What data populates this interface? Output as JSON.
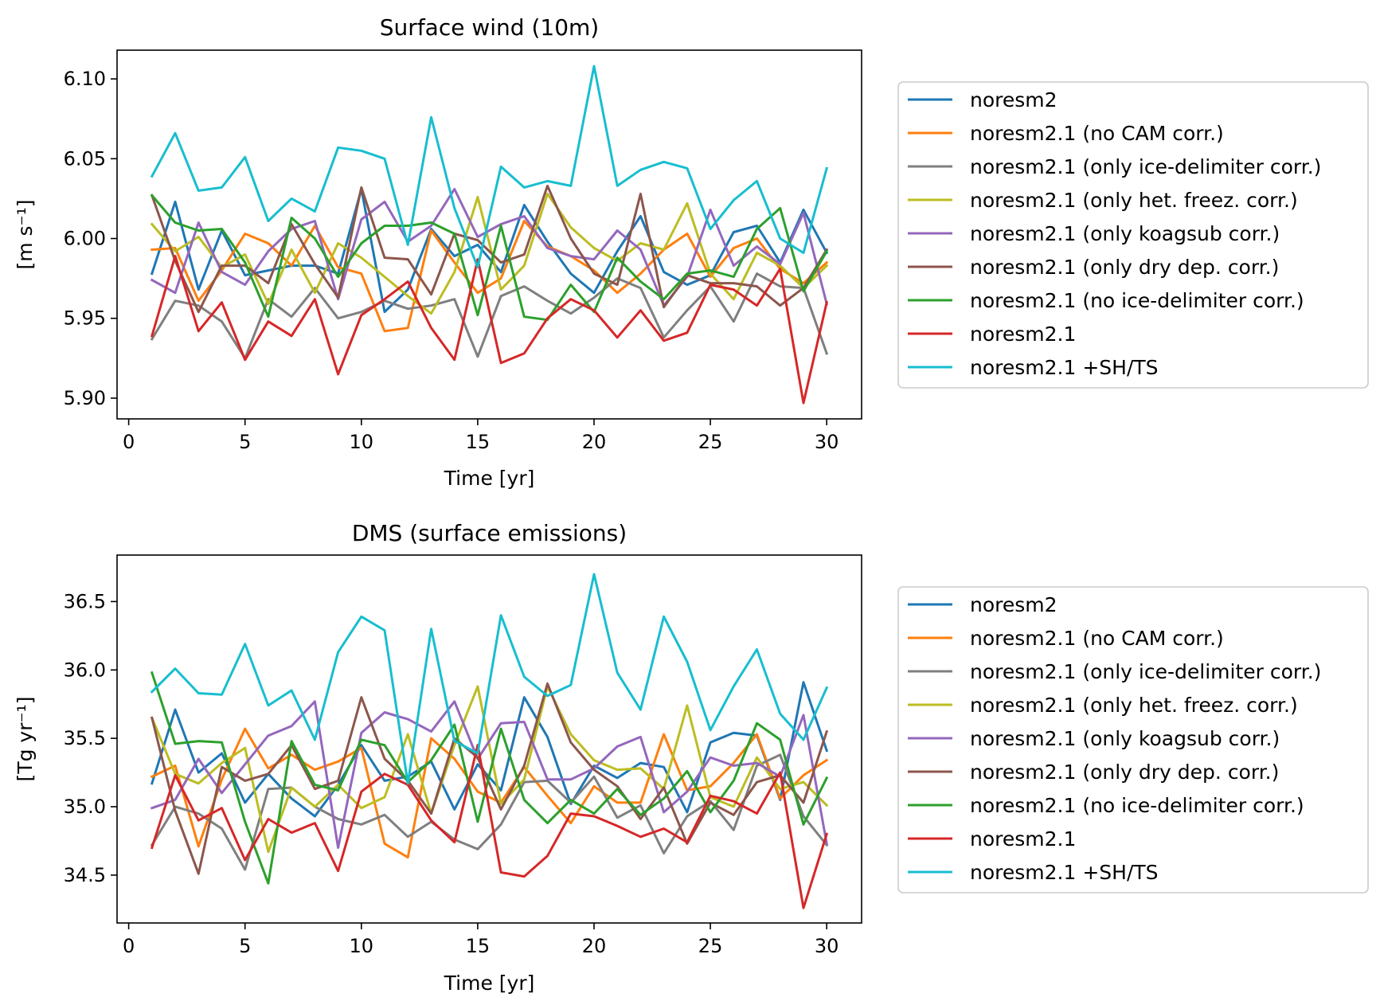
{
  "chart_data": [
    {
      "type": "line",
      "title": "Surface wind (10m)",
      "xlabel": "Time [yr]",
      "ylabel": "[m s⁻¹]",
      "xlim": [
        -0.5,
        31.5
      ],
      "ylim": [
        5.887,
        6.118
      ],
      "xticks": [
        0,
        5,
        10,
        15,
        20,
        25,
        30
      ],
      "yticks": [
        5.9,
        5.95,
        6.0,
        6.05,
        6.1
      ],
      "ytick_labels": [
        "5.90",
        "5.95",
        "6.00",
        "6.05",
        "6.10"
      ],
      "legend_position": "right, outside",
      "grid": false,
      "x": [
        1,
        2,
        3,
        4,
        5,
        6,
        7,
        8,
        9,
        10,
        11,
        12,
        13,
        14,
        15,
        16,
        17,
        18,
        19,
        20,
        21,
        22,
        23,
        24,
        25,
        26,
        27,
        28,
        29,
        30
      ],
      "series": [
        {
          "name": "noresm2",
          "color": "#1f77b4",
          "values": [
            5.978,
            6.023,
            5.968,
            6.005,
            5.977,
            5.98,
            5.983,
            5.983,
            5.978,
            6.031,
            5.954,
            5.968,
            6.006,
            5.989,
            5.996,
            5.979,
            6.021,
            5.998,
            5.978,
            5.966,
            5.992,
            6.014,
            5.979,
            5.971,
            5.977,
            6.004,
            6.008,
            5.985,
            6.018,
            5.991
          ]
        },
        {
          "name": "noresm2.1 (no CAM corr.)",
          "color": "#ff7f0e",
          "values": [
            5.993,
            5.994,
            5.961,
            5.98,
            6.003,
            5.997,
            5.983,
            6.008,
            5.982,
            5.978,
            5.942,
            5.944,
            6.005,
            5.985,
            5.966,
            5.975,
            6.011,
            5.995,
            5.989,
            5.98,
            5.966,
            5.978,
            5.993,
            6.003,
            5.976,
            5.994,
            6.0,
            5.981,
            5.972,
            5.985
          ]
        },
        {
          "name": "noresm2.1 (only ice-delimiter corr.)",
          "color": "#7f7f7f",
          "values": [
            5.937,
            5.961,
            5.958,
            5.948,
            5.925,
            5.962,
            5.951,
            5.969,
            5.95,
            5.954,
            5.961,
            5.956,
            5.958,
            5.962,
            5.926,
            5.964,
            5.97,
            5.961,
            5.953,
            5.963,
            5.975,
            5.969,
            5.938,
            5.955,
            5.97,
            5.948,
            5.978,
            5.97,
            5.969,
            5.928
          ]
        },
        {
          "name": "noresm2.1 (only het. freez. corr.)",
          "color": "#bcbd22",
          "values": [
            6.009,
            5.992,
            6.001,
            5.982,
            5.99,
            5.959,
            5.993,
            5.966,
            5.997,
            5.988,
            5.976,
            5.964,
            5.953,
            5.979,
            6.026,
            5.968,
            5.983,
            6.028,
            6.007,
            5.994,
            5.986,
            5.997,
            5.993,
            6.022,
            5.978,
            5.962,
            5.991,
            5.983,
            5.969,
            5.983
          ]
        },
        {
          "name": "noresm2.1 (only koagsub corr.)",
          "color": "#9467bd",
          "values": [
            5.974,
            5.966,
            6.01,
            5.979,
            5.971,
            5.992,
            6.006,
            6.011,
            5.962,
            6.012,
            6.023,
            5.998,
            6.008,
            6.031,
            6.001,
            6.009,
            6.014,
            5.994,
            5.989,
            5.987,
            6.005,
            5.993,
            5.958,
            5.976,
            6.018,
            5.983,
            5.995,
            5.984,
            6.016,
            5.959
          ]
        },
        {
          "name": "noresm2.1 (only dry dep. corr.)",
          "color": "#8c564b",
          "values": [
            6.027,
            5.986,
            5.954,
            5.983,
            5.983,
            5.972,
            6.009,
            5.984,
            5.963,
            6.032,
            5.988,
            5.987,
            5.965,
            6.003,
            5.999,
            5.985,
            5.99,
            6.033,
            6.0,
            5.978,
            5.971,
            6.028,
            5.957,
            5.977,
            5.972,
            5.972,
            5.97,
            5.958,
            5.969,
            5.993
          ]
        },
        {
          "name": "noresm2.1 (no ice-delimiter corr.)",
          "color": "#2ca02c",
          "values": [
            6.027,
            6.01,
            6.005,
            6.006,
            5.985,
            5.951,
            6.013,
            6.0,
            5.976,
            5.997,
            6.008,
            6.008,
            6.01,
            6.003,
            5.952,
            6.008,
            5.951,
            5.949,
            5.971,
            5.954,
            5.988,
            5.973,
            5.962,
            5.978,
            5.98,
            5.976,
            6.006,
            6.019,
            5.967,
            5.992
          ]
        },
        {
          "name": "noresm2.1",
          "color": "#d62728",
          "values": [
            5.939,
            5.989,
            5.942,
            5.96,
            5.924,
            5.948,
            5.939,
            5.962,
            5.915,
            5.952,
            5.962,
            5.973,
            5.944,
            5.924,
            5.987,
            5.922,
            5.928,
            5.95,
            5.962,
            5.955,
            5.938,
            5.955,
            5.936,
            5.941,
            5.971,
            5.968,
            5.958,
            5.981,
            5.897,
            5.96
          ]
        },
        {
          "name": "noresm2.1 +SH/TS",
          "color": "#17becf",
          "values": [
            6.039,
            6.066,
            6.03,
            6.032,
            6.051,
            6.011,
            6.025,
            6.017,
            6.057,
            6.055,
            6.05,
            5.996,
            6.076,
            6.019,
            5.982,
            6.045,
            6.032,
            6.036,
            6.033,
            6.108,
            6.033,
            6.043,
            6.048,
            6.044,
            6.006,
            6.024,
            6.036,
            6.0,
            5.991,
            6.044
          ]
        }
      ]
    },
    {
      "type": "line",
      "title": "DMS (surface emissions)",
      "xlabel": "Time [yr]",
      "ylabel": "[Tg yr⁻¹]",
      "xlim": [
        -0.5,
        31.5
      ],
      "ylim": [
        34.15,
        36.84
      ],
      "xticks": [
        0,
        5,
        10,
        15,
        20,
        25,
        30
      ],
      "yticks": [
        34.5,
        35.0,
        35.5,
        36.0,
        36.5
      ],
      "ytick_labels": [
        "34.5",
        "35.0",
        "35.5",
        "36.0",
        "36.5"
      ],
      "legend_position": "right, outside",
      "grid": false,
      "x": [
        1,
        2,
        3,
        4,
        5,
        6,
        7,
        8,
        9,
        10,
        11,
        12,
        13,
        14,
        15,
        16,
        17,
        18,
        19,
        20,
        21,
        22,
        23,
        24,
        25,
        26,
        27,
        28,
        29,
        30
      ],
      "series": [
        {
          "name": "noresm2",
          "color": "#1f77b4",
          "values": [
            35.17,
            35.71,
            35.25,
            35.39,
            35.03,
            35.24,
            35.06,
            34.93,
            35.16,
            35.45,
            35.19,
            35.22,
            35.33,
            34.98,
            35.31,
            35.12,
            35.8,
            35.51,
            35.02,
            35.3,
            35.21,
            35.32,
            35.29,
            34.96,
            35.47,
            35.54,
            35.52,
            35.05,
            35.91,
            35.41
          ]
        },
        {
          "name": "noresm2.1 (no CAM corr.)",
          "color": "#ff7f0e",
          "values": [
            35.22,
            35.3,
            34.71,
            35.2,
            35.57,
            35.28,
            35.38,
            35.27,
            35.33,
            35.43,
            34.73,
            34.63,
            35.5,
            35.35,
            35.11,
            35.03,
            35.29,
            35.08,
            34.88,
            35.15,
            35.03,
            35.03,
            35.53,
            35.12,
            35.15,
            35.32,
            35.53,
            35.06,
            35.23,
            35.34
          ]
        },
        {
          "name": "noresm2.1 (only ice-delimiter corr.)",
          "color": "#7f7f7f",
          "values": [
            34.72,
            35.0,
            34.95,
            34.84,
            34.54,
            35.13,
            35.14,
            35.0,
            34.91,
            34.87,
            34.94,
            34.78,
            34.89,
            34.76,
            34.69,
            34.87,
            35.18,
            35.19,
            35.03,
            35.22,
            34.92,
            35.01,
            34.66,
            34.93,
            35.04,
            34.83,
            35.3,
            35.38,
            34.93,
            34.72
          ]
        },
        {
          "name": "noresm2.1 (only het. freez. corr.)",
          "color": "#bcbd22",
          "values": [
            35.65,
            35.24,
            35.17,
            35.32,
            35.43,
            34.67,
            35.14,
            35.0,
            35.16,
            34.99,
            35.07,
            35.53,
            34.95,
            35.45,
            35.88,
            35.02,
            35.2,
            35.88,
            35.53,
            35.34,
            35.27,
            35.28,
            35.13,
            35.74,
            35.07,
            35.0,
            35.36,
            35.13,
            35.18,
            35.01
          ]
        },
        {
          "name": "noresm2.1 (only koagsub corr.)",
          "color": "#9467bd",
          "values": [
            34.99,
            35.05,
            35.35,
            35.1,
            35.31,
            35.52,
            35.59,
            35.77,
            34.7,
            35.54,
            35.69,
            35.64,
            35.55,
            35.77,
            35.35,
            35.61,
            35.62,
            35.2,
            35.2,
            35.28,
            35.44,
            35.51,
            34.96,
            35.11,
            35.36,
            35.3,
            35.32,
            35.22,
            35.67,
            34.73
          ]
        },
        {
          "name": "noresm2.1 (only dry dep. corr.)",
          "color": "#8c564b",
          "values": [
            35.65,
            34.97,
            34.51,
            35.29,
            35.19,
            35.24,
            35.45,
            35.13,
            35.19,
            35.8,
            35.35,
            35.19,
            34.95,
            35.5,
            35.36,
            34.98,
            35.3,
            35.9,
            35.47,
            35.27,
            35.15,
            34.91,
            35.14,
            34.73,
            35.03,
            34.94,
            35.18,
            35.23,
            35.03,
            35.55
          ]
        },
        {
          "name": "noresm2.1 (no ice-delimiter corr.)",
          "color": "#2ca02c",
          "values": [
            35.98,
            35.46,
            35.48,
            35.47,
            34.89,
            34.44,
            35.48,
            35.16,
            35.12,
            35.49,
            35.45,
            35.18,
            35.34,
            35.6,
            34.89,
            35.57,
            35.05,
            34.88,
            35.05,
            34.95,
            35.13,
            34.94,
            35.06,
            35.26,
            34.96,
            35.19,
            35.61,
            35.49,
            34.87,
            35.21
          ]
        },
        {
          "name": "noresm2.1",
          "color": "#d62728",
          "values": [
            34.7,
            35.23,
            34.9,
            34.99,
            34.61,
            34.91,
            34.81,
            34.88,
            34.53,
            35.11,
            35.24,
            35.16,
            34.9,
            34.74,
            35.45,
            34.52,
            34.49,
            34.64,
            34.95,
            34.93,
            34.86,
            34.78,
            34.84,
            34.74,
            35.08,
            35.04,
            34.95,
            35.25,
            34.26,
            34.8
          ]
        },
        {
          "name": "noresm2.1 +SH/TS",
          "color": "#17becf",
          "values": [
            35.84,
            36.01,
            35.83,
            35.82,
            36.19,
            35.74,
            35.85,
            35.49,
            36.13,
            36.39,
            36.29,
            35.17,
            36.3,
            35.48,
            35.39,
            36.4,
            35.95,
            35.81,
            35.89,
            36.7,
            35.98,
            35.71,
            36.39,
            36.06,
            35.56,
            35.88,
            36.15,
            35.68,
            35.49,
            35.87
          ]
        }
      ]
    }
  ]
}
